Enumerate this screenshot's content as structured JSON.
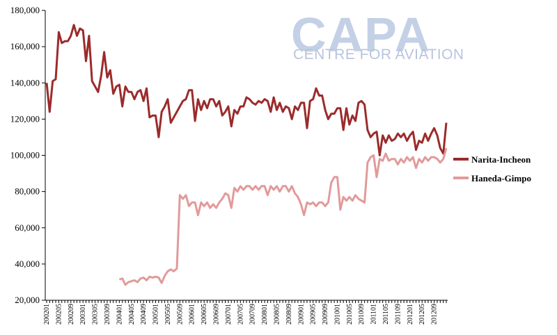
{
  "logo": {
    "main": "CAPA",
    "sub": "CENTRE FOR AVIATION"
  },
  "chart_data": {
    "type": "line",
    "title": "",
    "xlabel": "",
    "ylabel": "",
    "ylim": [
      20000,
      180000
    ],
    "yticks": [
      20000,
      40000,
      60000,
      80000,
      100000,
      120000,
      140000,
      160000,
      180000
    ],
    "ytick_labels": [
      "20,000",
      "40,000",
      "60,000",
      "80,000",
      "100,000",
      "120,000",
      "140,000",
      "160,000",
      "180,000"
    ],
    "x_start": "200201",
    "x_tick_labels": [
      "200201",
      "200205",
      "200209",
      "200301",
      "200305",
      "200309",
      "200401",
      "200405",
      "200409",
      "200501",
      "200505",
      "200509",
      "200601",
      "200605",
      "200609",
      "200701",
      "200705",
      "200709",
      "200801",
      "200805",
      "200809",
      "200901",
      "200905",
      "200909",
      "201001",
      "201005",
      "201009",
      "201101",
      "201105",
      "201109",
      "201201",
      "201205",
      "201209"
    ],
    "grid": false,
    "legend_position": "right",
    "series": [
      {
        "name": "Narita-Incheon",
        "color": "#9b2b2b",
        "values": [
          140000,
          124000,
          141000,
          142000,
          168000,
          162000,
          163000,
          163000,
          166000,
          172000,
          166000,
          170000,
          169000,
          152000,
          166000,
          141000,
          138000,
          135000,
          144000,
          157000,
          143000,
          147000,
          134000,
          138000,
          139000,
          127000,
          138000,
          135000,
          135000,
          131000,
          135000,
          136000,
          130000,
          137000,
          121000,
          122000,
          122000,
          110000,
          124000,
          127000,
          131000,
          118000,
          121000,
          124000,
          127000,
          130000,
          131000,
          136000,
          136000,
          119000,
          131000,
          125000,
          130000,
          126000,
          131000,
          131000,
          127000,
          130000,
          122000,
          124000,
          127000,
          116000,
          125000,
          123000,
          127000,
          127000,
          132000,
          131000,
          129000,
          128000,
          130000,
          129000,
          131000,
          130000,
          124000,
          132000,
          125000,
          129000,
          124000,
          127000,
          126000,
          120000,
          127000,
          125000,
          129000,
          129000,
          115000,
          130000,
          131000,
          137000,
          133000,
          133000,
          125000,
          120000,
          123000,
          123000,
          126000,
          126000,
          114000,
          126000,
          117000,
          122000,
          119000,
          129000,
          130000,
          128000,
          114000,
          110000,
          112000,
          113000,
          100000,
          111000,
          107000,
          111000,
          108000,
          109000,
          112000,
          110000,
          112000,
          108000,
          111000,
          113000,
          103000,
          108000,
          107000,
          112000,
          108000,
          112000,
          115000,
          111000,
          104000,
          101000,
          118000
        ]
      },
      {
        "name": "Haneda-Gimpo",
        "color": "#e29a9a",
        "start_index": 24,
        "values": [
          31500,
          32000,
          28500,
          30000,
          30500,
          31000,
          30000,
          32000,
          32500,
          31000,
          33000,
          32500,
          33000,
          32500,
          29500,
          33500,
          36000,
          37000,
          36000,
          37500,
          78000,
          76000,
          78000,
          72000,
          74000,
          74000,
          67000,
          74000,
          72000,
          74000,
          71000,
          73000,
          71000,
          74000,
          76000,
          79000,
          78000,
          71000,
          82000,
          80000,
          83000,
          81000,
          83000,
          83000,
          81000,
          83000,
          81000,
          83000,
          83000,
          78000,
          83000,
          81000,
          83000,
          80000,
          83000,
          83000,
          80000,
          83000,
          79000,
          77000,
          73000,
          67000,
          74000,
          73000,
          74000,
          72000,
          74000,
          74000,
          72000,
          74000,
          85000,
          88000,
          88000,
          70000,
          77000,
          75000,
          77000,
          75000,
          78000,
          76000,
          75000,
          74000,
          96000,
          99000,
          100000,
          88000,
          98000,
          97000,
          101000,
          97000,
          98000,
          98000,
          95000,
          98000,
          96000,
          99000,
          97000,
          99000,
          93000,
          98000,
          96000,
          99000,
          97000,
          99000,
          99000,
          98000,
          96000,
          98000,
          104000
        ]
      }
    ]
  }
}
